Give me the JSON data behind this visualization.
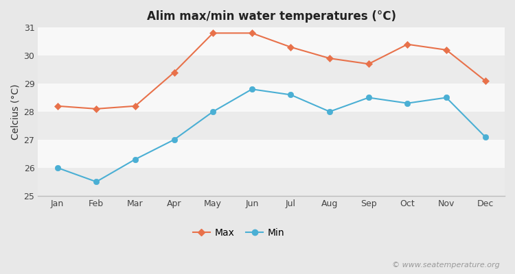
{
  "title": "Alim max/min water temperatures (°C)",
  "ylabel": "Celcius (°C)",
  "months": [
    "Jan",
    "Feb",
    "Mar",
    "Apr",
    "May",
    "Jun",
    "Jul",
    "Aug",
    "Sep",
    "Oct",
    "Nov",
    "Dec"
  ],
  "max_temps": [
    28.2,
    28.1,
    28.2,
    29.4,
    30.8,
    30.8,
    30.3,
    29.9,
    29.7,
    30.4,
    30.2,
    29.1
  ],
  "min_temps": [
    26.0,
    25.5,
    26.3,
    27.0,
    28.0,
    28.8,
    28.6,
    28.0,
    28.5,
    28.3,
    28.5,
    27.1
  ],
  "max_color": "#e8714a",
  "min_color": "#4aafd4",
  "fig_bg_color": "#e8e8e8",
  "plot_bg_color": "#f5f5f5",
  "band_color_a": "#ebebeb",
  "band_color_b": "#f8f8f8",
  "ylim": [
    25,
    31
  ],
  "yticks": [
    25,
    26,
    27,
    28,
    29,
    30,
    31
  ],
  "legend_labels": [
    "Max",
    "Min"
  ],
  "watermark": "© www.seatemperature.org",
  "title_fontsize": 12,
  "label_fontsize": 10,
  "tick_fontsize": 9,
  "watermark_fontsize": 8
}
